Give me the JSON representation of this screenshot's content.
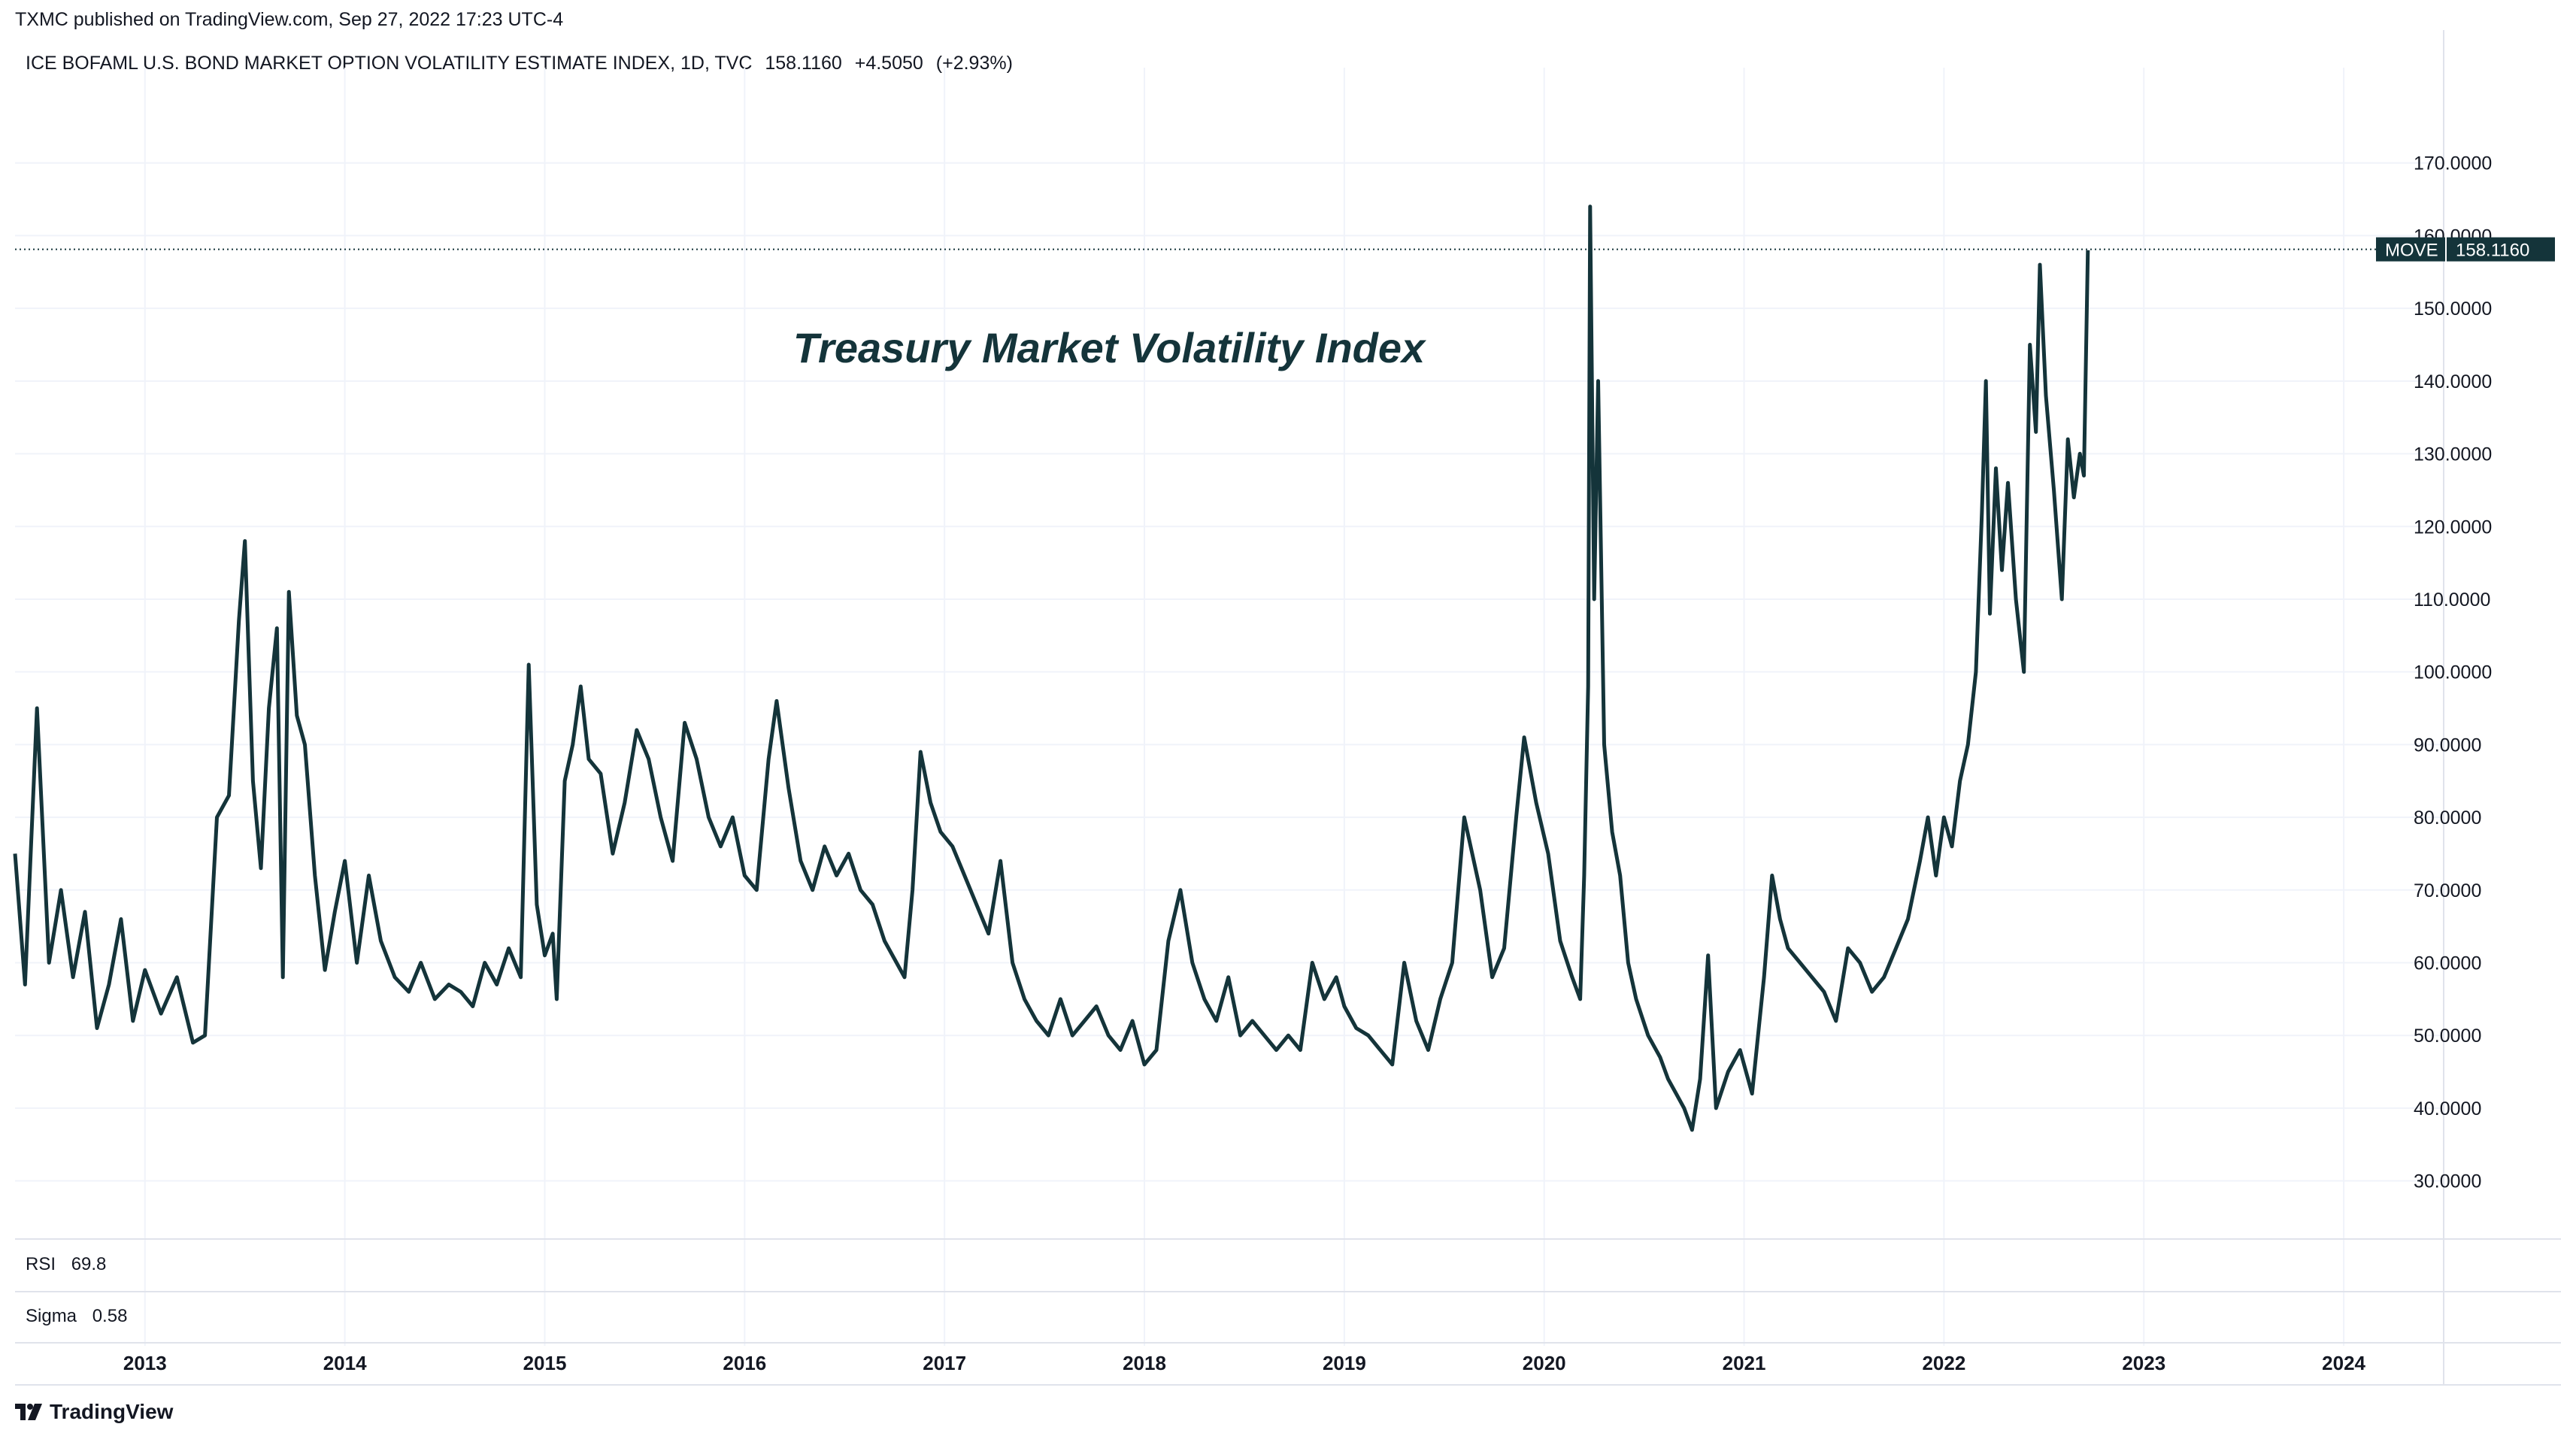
{
  "header": {
    "published": "TXMC published on TradingView.com, Sep 27, 2022 17:23 UTC-4"
  },
  "legend": {
    "name": "ICE BOFAML U.S. BOND MARKET OPTION VOLATILITY ESTIMATE INDEX, 1D, TVC",
    "last": "158.1160",
    "change": "+4.5050",
    "change_pct": "(+2.93%)"
  },
  "price_label": {
    "symbol": "MOVE",
    "value": "158.1160"
  },
  "indicators": [
    {
      "name": "RSI",
      "value": "69.8"
    },
    {
      "name": "Sigma",
      "value": "0.58"
    }
  ],
  "footer": {
    "brand": "TradingView"
  },
  "colors": {
    "line": "#14343a",
    "grid": "#f0f3fa",
    "tag_bg": "#14343a",
    "text": "#131722"
  },
  "chart_data": {
    "type": "line",
    "title": "Treasury Market Volatility Index",
    "xlabel": "",
    "ylabel": "",
    "ylim": [
      22,
      180
    ],
    "xlim": [
      2012.35,
      2024.5
    ],
    "y_ticks": [
      "170.0000",
      "160.0000",
      "150.0000",
      "140.0000",
      "130.0000",
      "120.0000",
      "110.0000",
      "100.0000",
      "90.0000",
      "80.0000",
      "70.0000",
      "60.0000",
      "50.0000",
      "40.0000",
      "30.0000"
    ],
    "x_ticks": [
      {
        "label": "2013",
        "x": 2013.0
      },
      {
        "label": "2014",
        "x": 2014.0
      },
      {
        "label": "2015",
        "x": 2015.0
      },
      {
        "label": "2016",
        "x": 2016.0
      },
      {
        "label": "2017",
        "x": 2017.0
      },
      {
        "label": "2018",
        "x": 2018.0
      },
      {
        "label": "2019",
        "x": 2019.0
      },
      {
        "label": "2020",
        "x": 2020.0
      },
      {
        "label": "2021",
        "x": 2021.0
      },
      {
        "label": "2022",
        "x": 2022.0
      },
      {
        "label": "2023",
        "x": 2023.0
      },
      {
        "label": "2024",
        "x": 2024.0
      }
    ],
    "last_value": 158.116,
    "series": [
      {
        "name": "MOVE",
        "points": [
          [
            2012.35,
            75
          ],
          [
            2012.4,
            57
          ],
          [
            2012.46,
            95
          ],
          [
            2012.52,
            60
          ],
          [
            2012.58,
            70
          ],
          [
            2012.64,
            58
          ],
          [
            2012.7,
            67
          ],
          [
            2012.76,
            51
          ],
          [
            2012.82,
            57
          ],
          [
            2012.88,
            66
          ],
          [
            2012.94,
            52
          ],
          [
            2013.0,
            59
          ],
          [
            2013.08,
            53
          ],
          [
            2013.16,
            58
          ],
          [
            2013.24,
            49
          ],
          [
            2013.3,
            50
          ],
          [
            2013.36,
            80
          ],
          [
            2013.42,
            83
          ],
          [
            2013.47,
            107
          ],
          [
            2013.5,
            118
          ],
          [
            2013.54,
            85
          ],
          [
            2013.58,
            73
          ],
          [
            2013.62,
            95
          ],
          [
            2013.66,
            106
          ],
          [
            2013.69,
            58
          ],
          [
            2013.72,
            111
          ],
          [
            2013.76,
            94
          ],
          [
            2013.8,
            90
          ],
          [
            2013.85,
            72
          ],
          [
            2013.9,
            59
          ],
          [
            2013.95,
            67
          ],
          [
            2014.0,
            74
          ],
          [
            2014.06,
            60
          ],
          [
            2014.12,
            72
          ],
          [
            2014.18,
            63
          ],
          [
            2014.25,
            58
          ],
          [
            2014.32,
            56
          ],
          [
            2014.38,
            60
          ],
          [
            2014.45,
            55
          ],
          [
            2014.52,
            57
          ],
          [
            2014.58,
            56
          ],
          [
            2014.64,
            54
          ],
          [
            2014.7,
            60
          ],
          [
            2014.76,
            57
          ],
          [
            2014.82,
            62
          ],
          [
            2014.88,
            58
          ],
          [
            2014.92,
            101
          ],
          [
            2014.96,
            68
          ],
          [
            2015.0,
            61
          ],
          [
            2015.04,
            64
          ],
          [
            2015.06,
            55
          ],
          [
            2015.1,
            85
          ],
          [
            2015.14,
            90
          ],
          [
            2015.18,
            98
          ],
          [
            2015.22,
            88
          ],
          [
            2015.28,
            86
          ],
          [
            2015.34,
            75
          ],
          [
            2015.4,
            82
          ],
          [
            2015.46,
            92
          ],
          [
            2015.52,
            88
          ],
          [
            2015.58,
            80
          ],
          [
            2015.64,
            74
          ],
          [
            2015.7,
            93
          ],
          [
            2015.76,
            88
          ],
          [
            2015.82,
            80
          ],
          [
            2015.88,
            76
          ],
          [
            2015.94,
            80
          ],
          [
            2016.0,
            72
          ],
          [
            2016.06,
            70
          ],
          [
            2016.12,
            88
          ],
          [
            2016.16,
            96
          ],
          [
            2016.22,
            84
          ],
          [
            2016.28,
            74
          ],
          [
            2016.34,
            70
          ],
          [
            2016.4,
            76
          ],
          [
            2016.46,
            72
          ],
          [
            2016.52,
            75
          ],
          [
            2016.58,
            70
          ],
          [
            2016.64,
            68
          ],
          [
            2016.7,
            63
          ],
          [
            2016.76,
            60
          ],
          [
            2016.8,
            58
          ],
          [
            2016.84,
            70
          ],
          [
            2016.88,
            89
          ],
          [
            2016.93,
            82
          ],
          [
            2016.98,
            78
          ],
          [
            2017.04,
            76
          ],
          [
            2017.1,
            72
          ],
          [
            2017.16,
            68
          ],
          [
            2017.22,
            64
          ],
          [
            2017.28,
            74
          ],
          [
            2017.34,
            60
          ],
          [
            2017.4,
            55
          ],
          [
            2017.46,
            52
          ],
          [
            2017.52,
            50
          ],
          [
            2017.58,
            55
          ],
          [
            2017.64,
            50
          ],
          [
            2017.7,
            52
          ],
          [
            2017.76,
            54
          ],
          [
            2017.82,
            50
          ],
          [
            2017.88,
            48
          ],
          [
            2017.94,
            52
          ],
          [
            2018.0,
            46
          ],
          [
            2018.06,
            48
          ],
          [
            2018.12,
            63
          ],
          [
            2018.18,
            70
          ],
          [
            2018.24,
            60
          ],
          [
            2018.3,
            55
          ],
          [
            2018.36,
            52
          ],
          [
            2018.42,
            58
          ],
          [
            2018.48,
            50
          ],
          [
            2018.54,
            52
          ],
          [
            2018.6,
            50
          ],
          [
            2018.66,
            48
          ],
          [
            2018.72,
            50
          ],
          [
            2018.78,
            48
          ],
          [
            2018.84,
            60
          ],
          [
            2018.9,
            55
          ],
          [
            2018.96,
            58
          ],
          [
            2019.0,
            54
          ],
          [
            2019.06,
            51
          ],
          [
            2019.12,
            50
          ],
          [
            2019.18,
            48
          ],
          [
            2019.24,
            46
          ],
          [
            2019.3,
            60
          ],
          [
            2019.36,
            52
          ],
          [
            2019.42,
            48
          ],
          [
            2019.48,
            55
          ],
          [
            2019.54,
            60
          ],
          [
            2019.6,
            80
          ],
          [
            2019.64,
            75
          ],
          [
            2019.68,
            70
          ],
          [
            2019.74,
            58
          ],
          [
            2019.8,
            62
          ],
          [
            2019.86,
            80
          ],
          [
            2019.9,
            91
          ],
          [
            2019.96,
            82
          ],
          [
            2020.02,
            75
          ],
          [
            2020.08,
            63
          ],
          [
            2020.14,
            58
          ],
          [
            2020.18,
            55
          ],
          [
            2020.2,
            72
          ],
          [
            2020.22,
            98
          ],
          [
            2020.23,
            164
          ],
          [
            2020.25,
            110
          ],
          [
            2020.27,
            140
          ],
          [
            2020.3,
            90
          ],
          [
            2020.34,
            78
          ],
          [
            2020.38,
            72
          ],
          [
            2020.42,
            60
          ],
          [
            2020.46,
            55
          ],
          [
            2020.52,
            50
          ],
          [
            2020.58,
            47
          ],
          [
            2020.62,
            44
          ],
          [
            2020.66,
            42
          ],
          [
            2020.7,
            40
          ],
          [
            2020.74,
            37
          ],
          [
            2020.78,
            44
          ],
          [
            2020.82,
            61
          ],
          [
            2020.86,
            40
          ],
          [
            2020.92,
            45
          ],
          [
            2020.98,
            48
          ],
          [
            2021.04,
            42
          ],
          [
            2021.1,
            58
          ],
          [
            2021.14,
            72
          ],
          [
            2021.18,
            66
          ],
          [
            2021.22,
            62
          ],
          [
            2021.28,
            60
          ],
          [
            2021.34,
            58
          ],
          [
            2021.4,
            56
          ],
          [
            2021.46,
            52
          ],
          [
            2021.52,
            62
          ],
          [
            2021.58,
            60
          ],
          [
            2021.64,
            56
          ],
          [
            2021.7,
            58
          ],
          [
            2021.76,
            62
          ],
          [
            2021.82,
            66
          ],
          [
            2021.88,
            74
          ],
          [
            2021.92,
            80
          ],
          [
            2021.96,
            72
          ],
          [
            2022.0,
            80
          ],
          [
            2022.04,
            76
          ],
          [
            2022.08,
            85
          ],
          [
            2022.12,
            90
          ],
          [
            2022.16,
            100
          ],
          [
            2022.19,
            122
          ],
          [
            2022.21,
            140
          ],
          [
            2022.23,
            108
          ],
          [
            2022.26,
            128
          ],
          [
            2022.29,
            114
          ],
          [
            2022.32,
            126
          ],
          [
            2022.36,
            110
          ],
          [
            2022.4,
            100
          ],
          [
            2022.43,
            145
          ],
          [
            2022.46,
            133
          ],
          [
            2022.48,
            156
          ],
          [
            2022.51,
            138
          ],
          [
            2022.55,
            125
          ],
          [
            2022.59,
            110
          ],
          [
            2022.62,
            132
          ],
          [
            2022.65,
            124
          ],
          [
            2022.68,
            130
          ],
          [
            2022.7,
            127
          ],
          [
            2022.72,
            158
          ]
        ]
      }
    ]
  }
}
